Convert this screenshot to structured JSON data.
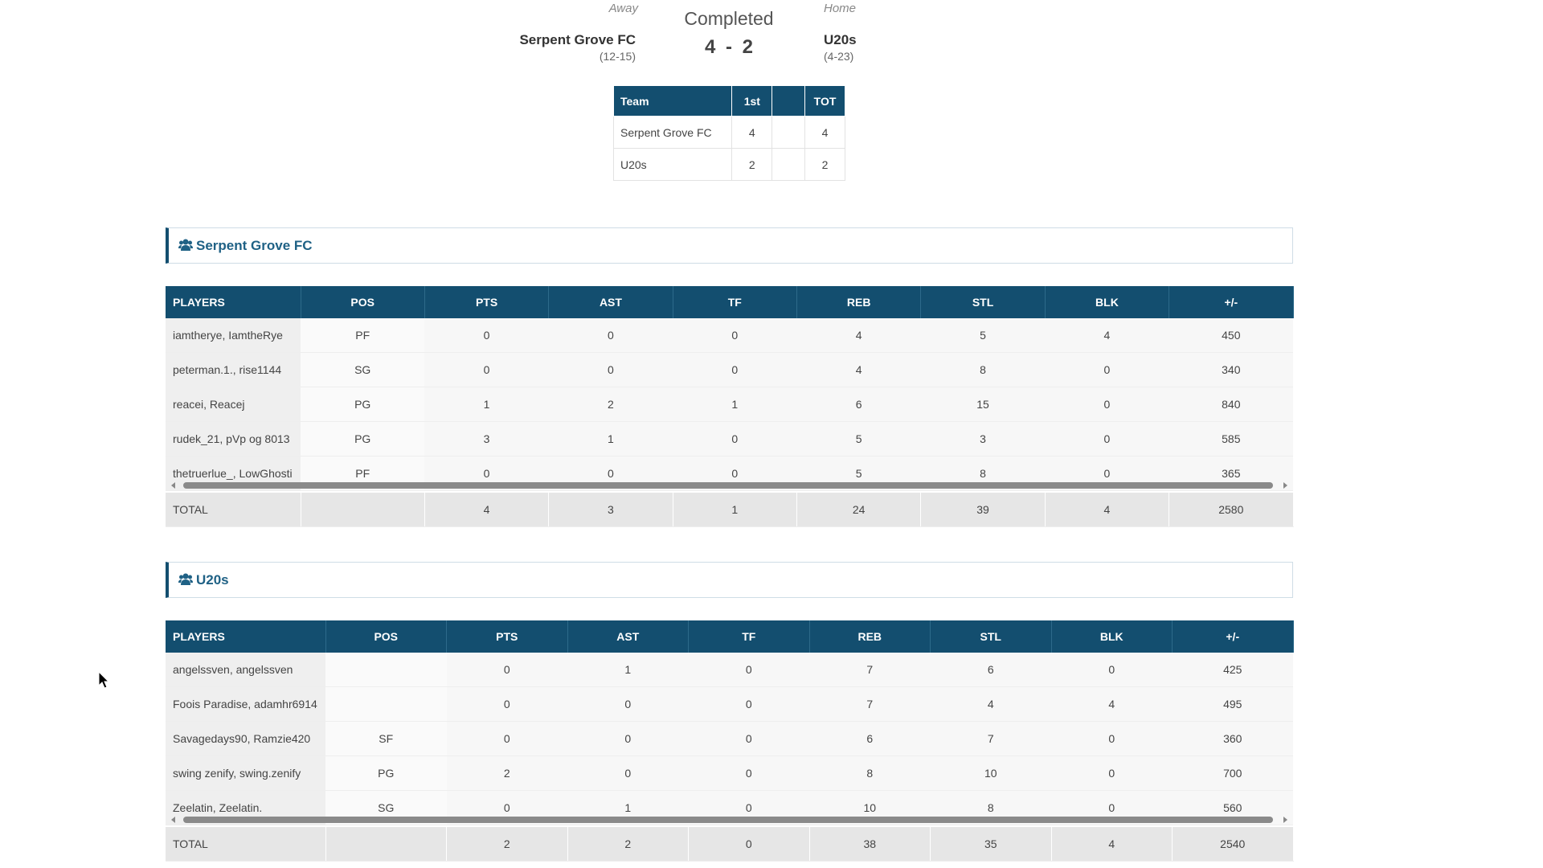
{
  "header": {
    "away_label": "Away",
    "status": "Completed",
    "home_label": "Home",
    "away_team": "Serpent Grove FC",
    "away_record": "(12-15)",
    "home_team": "U20s",
    "home_record": "(4-23)",
    "score": {
      "away": 4,
      "separator": "-",
      "home": 2
    }
  },
  "linescore": {
    "columns": [
      "Team",
      "1st",
      "TOT"
    ],
    "rows": [
      [
        "Serpent Grove FC",
        4,
        4
      ],
      [
        "U20s",
        2,
        2
      ]
    ]
  },
  "teams": [
    {
      "name": "Serpent Grove FC",
      "columns": [
        "PLAYERS",
        "POS",
        "PTS",
        "AST",
        "TF",
        "REB",
        "STL",
        "BLK",
        "+/-"
      ],
      "players": [
        [
          "iamtherye, IamtheRye",
          "PF",
          0,
          0,
          0,
          4,
          5,
          4,
          450
        ],
        [
          "peterman.1., rise1144",
          "SG",
          0,
          0,
          0,
          4,
          8,
          0,
          340
        ],
        [
          "reacei, Reacej",
          "PG",
          1,
          2,
          1,
          6,
          15,
          0,
          840
        ],
        [
          "rudek_21, pVp og 8013",
          "PG",
          3,
          1,
          0,
          5,
          3,
          0,
          585
        ],
        [
          "thetruerlue_, LowGhosti",
          "PF",
          0,
          0,
          0,
          5,
          8,
          0,
          365
        ]
      ],
      "total": {
        "label": "TOTAL",
        "values": [
          4,
          3,
          1,
          24,
          39,
          4,
          2580
        ]
      }
    },
    {
      "name": "U20s",
      "columns": [
        "PLAYERS",
        "POS",
        "PTS",
        "AST",
        "TF",
        "REB",
        "STL",
        "BLK",
        "+/-"
      ],
      "players": [
        [
          "angelssven, angelssven",
          null,
          0,
          1,
          0,
          7,
          6,
          0,
          425
        ],
        [
          "Foois Paradise, adamhr6914",
          null,
          0,
          0,
          0,
          7,
          4,
          4,
          495
        ],
        [
          "Savagedays90, Ramzie420",
          "SF",
          0,
          0,
          0,
          6,
          7,
          0,
          360
        ],
        [
          "swing zenify, swing.zenify",
          "PG",
          2,
          0,
          0,
          8,
          10,
          0,
          700
        ],
        [
          "Zeelatin, Zeelatin.",
          "SG",
          0,
          1,
          0,
          10,
          8,
          0,
          560
        ]
      ],
      "total": {
        "label": "TOTAL",
        "values": [
          2,
          2,
          0,
          38,
          35,
          4,
          2540
        ]
      }
    }
  ]
}
